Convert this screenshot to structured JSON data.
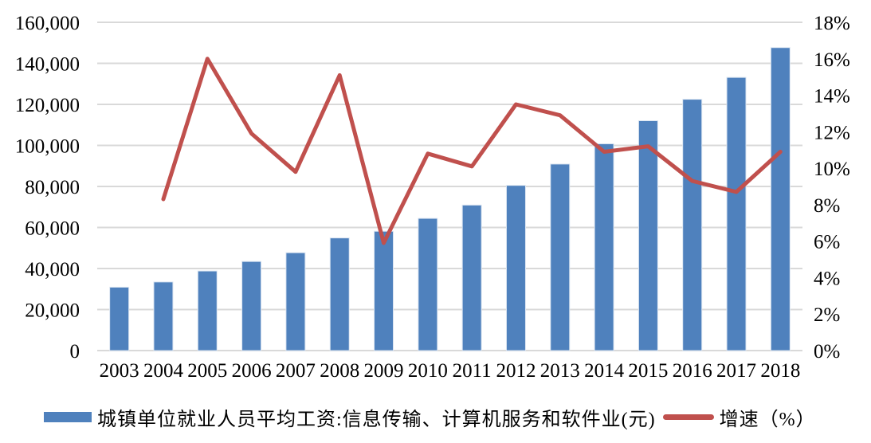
{
  "chart_data": {
    "type": "bar",
    "subtype": "combo-bar-line",
    "categories": [
      "2003",
      "2004",
      "2005",
      "2006",
      "2007",
      "2008",
      "2009",
      "2010",
      "2011",
      "2012",
      "2013",
      "2014",
      "2015",
      "2016",
      "2017",
      "2018"
    ],
    "series": [
      {
        "name": "城镇单位就业人员平均工资:信息传输、计算机服务和软件业(元)",
        "type": "bar",
        "axis": "left",
        "color": "#4F81BD",
        "values": [
          30897,
          33449,
          38799,
          43435,
          47700,
          54906,
          58154,
          64436,
          70918,
          80510,
          90915,
          100797,
          112042,
          122478,
          133150,
          147678
        ]
      },
      {
        "name": "增速（%）",
        "type": "line",
        "axis": "right",
        "color": "#C0504D",
        "values": [
          null,
          8.3,
          16.0,
          11.9,
          9.8,
          15.1,
          5.9,
          10.8,
          10.1,
          13.5,
          12.9,
          10.9,
          11.2,
          9.3,
          8.7,
          10.9
        ]
      }
    ],
    "title": "",
    "xlabel": "",
    "ylabel_left": "",
    "ylabel_right": "",
    "left_axis": {
      "min": 0,
      "max": 160000,
      "step": 20000,
      "tick_labels": [
        "0",
        "20,000",
        "40,000",
        "60,000",
        "80,000",
        "100,000",
        "120,000",
        "140,000",
        "160,000"
      ]
    },
    "right_axis": {
      "min": 0,
      "max": 18,
      "step": 2,
      "tick_labels": [
        "0%",
        "2%",
        "4%",
        "6%",
        "8%",
        "10%",
        "12%",
        "14%",
        "16%",
        "18%"
      ]
    },
    "grid": true,
    "gridline_color": "#D9D9D9",
    "legend_position": "bottom"
  }
}
